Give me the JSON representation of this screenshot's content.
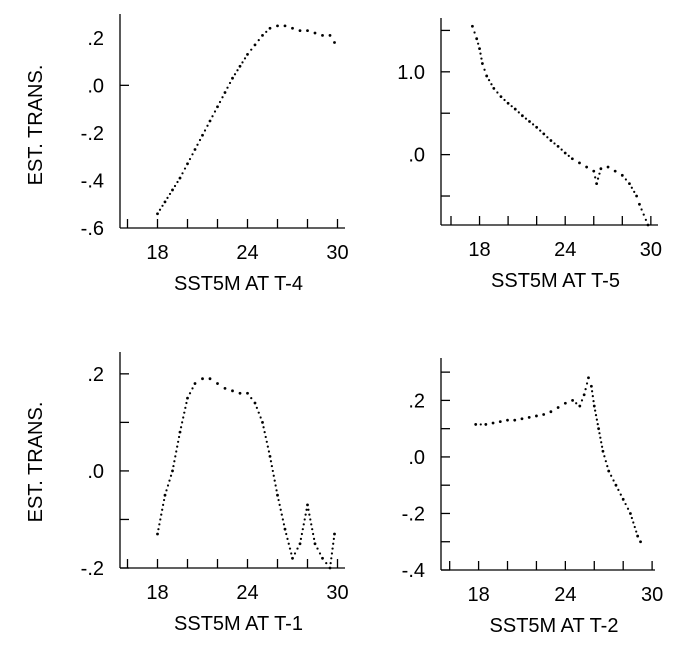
{
  "ylabel": "EST. TRANS.",
  "chart_data": [
    {
      "type": "scatter",
      "xlabel": "SST5M AT T-4",
      "ylabel": "EST. TRANS.",
      "xlim": [
        15.5,
        30.5
      ],
      "ylim": [
        -0.6,
        0.3
      ],
      "xticks": [
        18,
        24,
        30
      ],
      "xtick_labels": [
        "18",
        "24",
        "30"
      ],
      "yticks": [
        0.2,
        0.0,
        -0.2,
        -0.4,
        -0.6
      ],
      "ytick_labels": [
        ".2",
        ".0",
        "-.2",
        "-.4",
        "-.6"
      ],
      "x": [
        18.0,
        18.5,
        19.0,
        19.5,
        20.0,
        20.5,
        21.0,
        21.5,
        22.0,
        22.5,
        23.0,
        23.5,
        24.0,
        24.5,
        25.0,
        25.5,
        26.0,
        26.5,
        27.0,
        27.5,
        28.0,
        28.5,
        29.0,
        29.5,
        29.8
      ],
      "y": [
        -0.54,
        -0.49,
        -0.44,
        -0.39,
        -0.33,
        -0.27,
        -0.21,
        -0.15,
        -0.09,
        -0.03,
        0.03,
        0.08,
        0.13,
        0.17,
        0.21,
        0.24,
        0.25,
        0.25,
        0.24,
        0.23,
        0.23,
        0.22,
        0.21,
        0.21,
        0.18
      ]
    },
    {
      "type": "scatter",
      "xlabel": "SST5M AT T-5",
      "ylabel": "",
      "xlim": [
        15.3,
        30.5
      ],
      "ylim": [
        -0.85,
        1.65
      ],
      "xticks": [
        18,
        24,
        30
      ],
      "xtick_labels": [
        "18",
        "24",
        "30"
      ],
      "yticks": [
        1.0,
        0.0
      ],
      "ytick_labels": [
        "1.0",
        ".0"
      ],
      "x": [
        17.5,
        17.8,
        18.0,
        18.2,
        18.5,
        19.0,
        19.5,
        20.0,
        20.5,
        21.0,
        21.5,
        22.0,
        22.5,
        23.0,
        23.5,
        24.0,
        24.5,
        25.0,
        25.5,
        26.0,
        26.2,
        26.5,
        27.0,
        27.5,
        28.0,
        28.5,
        29.0,
        29.2,
        29.8
      ],
      "y": [
        1.55,
        1.4,
        1.28,
        1.1,
        0.95,
        0.8,
        0.7,
        0.62,
        0.55,
        0.47,
        0.4,
        0.33,
        0.25,
        0.17,
        0.1,
        0.02,
        -0.05,
        -0.1,
        -0.15,
        -0.2,
        -0.35,
        -0.17,
        -0.15,
        -0.2,
        -0.25,
        -0.35,
        -0.5,
        -0.6,
        -0.85
      ]
    },
    {
      "type": "scatter",
      "xlabel": "SST5M  AT T-1",
      "ylabel": "EST. TRANS.",
      "xlim": [
        15.5,
        30.5
      ],
      "ylim": [
        -0.2,
        0.245
      ],
      "xticks": [
        18,
        24,
        30
      ],
      "xtick_labels": [
        "18",
        "24",
        "30"
      ],
      "yticks": [
        0.2,
        0.0,
        -0.2
      ],
      "ytick_labels": [
        ".2",
        ".0",
        "-.2"
      ],
      "x": [
        18.0,
        18.5,
        19.0,
        19.5,
        20.0,
        20.5,
        21.0,
        21.5,
        22.0,
        22.5,
        23.0,
        23.5,
        24.0,
        24.5,
        25.0,
        25.5,
        26.0,
        26.5,
        27.0,
        27.5,
        28.0,
        28.5,
        29.0,
        29.5,
        29.8
      ],
      "y": [
        -0.13,
        -0.05,
        0.0,
        0.08,
        0.15,
        0.18,
        0.19,
        0.19,
        0.18,
        0.17,
        0.165,
        0.16,
        0.16,
        0.14,
        0.1,
        0.03,
        -0.05,
        -0.12,
        -0.18,
        -0.15,
        -0.07,
        -0.15,
        -0.18,
        -0.2,
        -0.13
      ]
    },
    {
      "type": "scatter",
      "xlabel": "SST5M  AT T-2",
      "ylabel": "",
      "xlim": [
        15.4,
        30.2
      ],
      "ylim": [
        -0.4,
        0.35
      ],
      "xticks": [
        18,
        24,
        30
      ],
      "xtick_labels": [
        "18",
        "24",
        "30"
      ],
      "yticks": [
        0.2,
        0.0,
        -0.2,
        -0.4
      ],
      "ytick_labels": [
        ".2",
        ".0",
        "-.2",
        "-.4"
      ],
      "x": [
        17.8,
        18.5,
        19.0,
        19.5,
        20.0,
        20.5,
        21.0,
        21.5,
        22.0,
        22.5,
        23.0,
        23.5,
        24.0,
        24.5,
        25.0,
        25.3,
        25.6,
        25.8,
        26.0,
        26.3,
        26.6,
        27.0,
        27.5,
        28.0,
        28.5,
        29.0,
        29.2
      ],
      "y": [
        0.115,
        0.115,
        0.12,
        0.125,
        0.13,
        0.13,
        0.135,
        0.14,
        0.145,
        0.15,
        0.16,
        0.175,
        0.19,
        0.2,
        0.18,
        0.22,
        0.28,
        0.25,
        0.18,
        0.1,
        0.02,
        -0.05,
        -0.1,
        -0.15,
        -0.2,
        -0.28,
        -0.3
      ]
    }
  ]
}
